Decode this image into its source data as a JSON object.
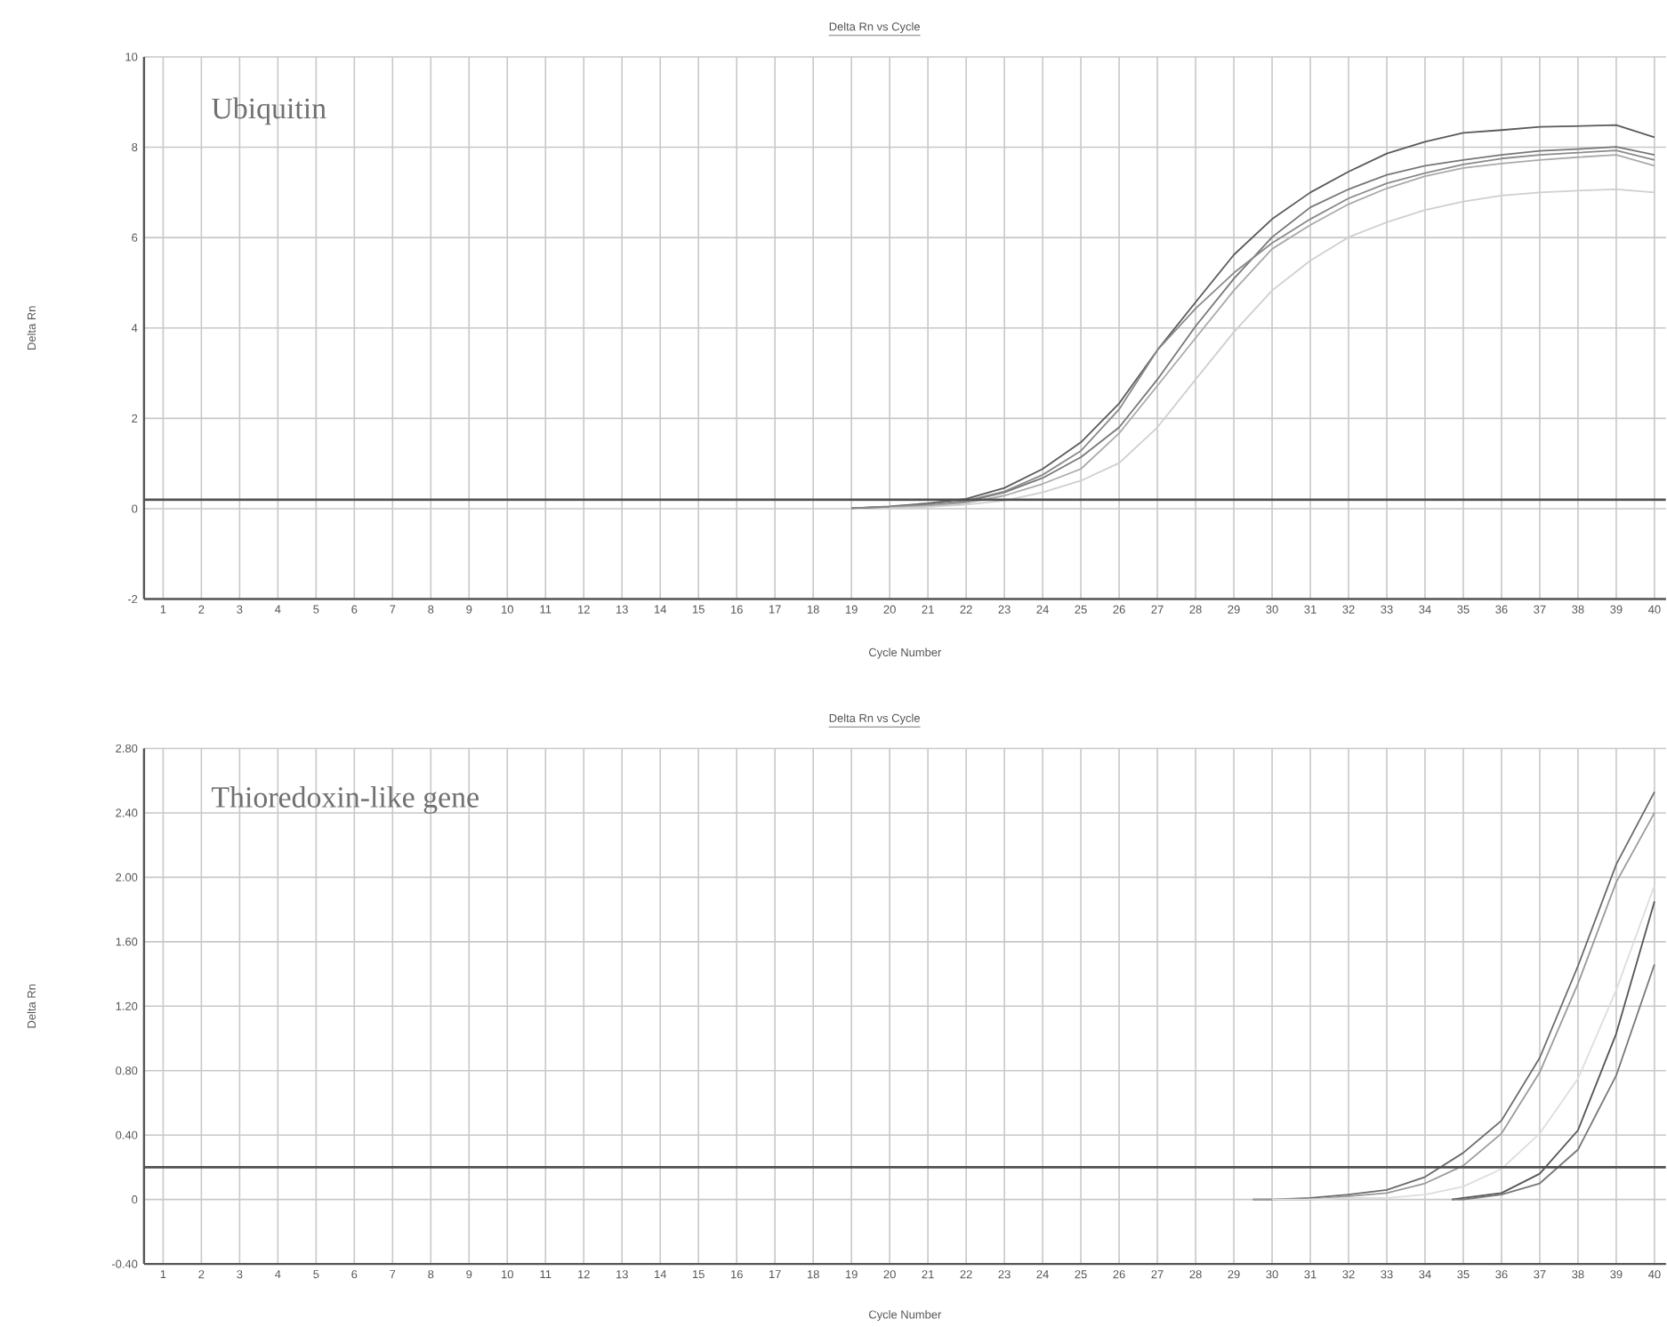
{
  "chart_data": [
    {
      "type": "line",
      "title": "Delta Rn vs Cycle",
      "xlabel": "Cycle Number",
      "ylabel": "Delta Rn",
      "annotations": [
        "Ubiquitin"
      ],
      "grid": true,
      "xlim": [
        0.5,
        40.3
      ],
      "ylim": [
        -2,
        10
      ],
      "xticks": [
        1,
        2,
        3,
        4,
        5,
        6,
        7,
        8,
        9,
        10,
        11,
        12,
        13,
        14,
        15,
        16,
        17,
        18,
        19,
        20,
        21,
        22,
        23,
        24,
        25,
        26,
        27,
        28,
        29,
        30,
        31,
        32,
        33,
        34,
        35,
        36,
        37,
        38,
        39,
        40
      ],
      "yticks": [
        -2,
        0,
        2,
        4,
        6,
        8,
        10
      ],
      "ref_lines": [
        {
          "axis": "y",
          "value": 0.2,
          "color": "#505050"
        }
      ],
      "series": [
        {
          "color": "#5a5a5a",
          "x": [
            19,
            20,
            21,
            22,
            23,
            24,
            25,
            26,
            27,
            28,
            29,
            30,
            31,
            32,
            33,
            34,
            35,
            36,
            37,
            38,
            39,
            40
          ],
          "values": [
            0.01,
            0.05,
            0.12,
            0.22,
            0.46,
            0.88,
            1.47,
            2.33,
            3.51,
            4.57,
            5.62,
            6.41,
            7.0,
            7.46,
            7.86,
            8.12,
            8.32,
            8.38,
            8.45,
            8.47,
            8.49,
            8.22
          ]
        },
        {
          "color": "#777777",
          "x": [
            19,
            20,
            21,
            22,
            23,
            24,
            25,
            26,
            27,
            28,
            29,
            30,
            31,
            32,
            33,
            34,
            35,
            36,
            37,
            38,
            39,
            40
          ],
          "values": [
            0.01,
            0.04,
            0.09,
            0.16,
            0.36,
            0.68,
            1.14,
            1.8,
            2.86,
            4.04,
            5.09,
            6.01,
            6.67,
            7.07,
            7.39,
            7.59,
            7.72,
            7.83,
            7.92,
            7.96,
            8.01,
            7.83
          ]
        },
        {
          "color": "#8a8a8a",
          "x": [
            19,
            20,
            21,
            22,
            23,
            24,
            25,
            26,
            27,
            28,
            29,
            30,
            31,
            32,
            33,
            34,
            35,
            36,
            37,
            38,
            39,
            40
          ],
          "values": [
            0.01,
            0.04,
            0.09,
            0.18,
            0.38,
            0.75,
            1.28,
            2.2,
            3.51,
            4.43,
            5.22,
            5.88,
            6.41,
            6.87,
            7.2,
            7.43,
            7.62,
            7.75,
            7.83,
            7.88,
            7.93,
            7.72
          ]
        },
        {
          "color": "#aaaaaa",
          "x": [
            20,
            21,
            22,
            23,
            24,
            25,
            26,
            27,
            28,
            29,
            30,
            31,
            32,
            33,
            34,
            35,
            36,
            37,
            38,
            39,
            40
          ],
          "values": [
            0.02,
            0.06,
            0.13,
            0.29,
            0.55,
            0.88,
            1.67,
            2.72,
            3.78,
            4.83,
            5.75,
            6.28,
            6.74,
            7.09,
            7.36,
            7.54,
            7.64,
            7.72,
            7.78,
            7.83,
            7.59
          ]
        },
        {
          "color": "#cfcfcf",
          "x": [
            20,
            21,
            22,
            23,
            24,
            25,
            26,
            27,
            28,
            29,
            30,
            31,
            32,
            33,
            34,
            35,
            36,
            37,
            38,
            39,
            40
          ],
          "values": [
            0.01,
            0.04,
            0.09,
            0.18,
            0.36,
            0.62,
            1.01,
            1.8,
            2.86,
            3.91,
            4.83,
            5.49,
            6.01,
            6.34,
            6.61,
            6.8,
            6.93,
            7.0,
            7.04,
            7.07,
            7.0
          ]
        }
      ]
    },
    {
      "type": "line",
      "title": "Delta Rn vs Cycle",
      "xlabel": "Cycle Number",
      "ylabel": "Delta Rn",
      "annotations": [
        "Thioredoxin-like gene"
      ],
      "grid": true,
      "xlim": [
        0.5,
        40.3
      ],
      "ylim": [
        -0.4,
        2.8
      ],
      "xticks": [
        1,
        2,
        3,
        4,
        5,
        6,
        7,
        8,
        9,
        10,
        11,
        12,
        13,
        14,
        15,
        16,
        17,
        18,
        19,
        20,
        21,
        22,
        23,
        24,
        25,
        26,
        27,
        28,
        29,
        30,
        31,
        32,
        33,
        34,
        35,
        36,
        37,
        38,
        39,
        40
      ],
      "yticks": [
        {
          "value": -0.4,
          "label": "-0.40"
        },
        0,
        {
          "value": 0.4,
          "label": "0.40"
        },
        {
          "value": 0.8,
          "label": "0.80"
        },
        {
          "value": 1.2,
          "label": "1.20"
        },
        {
          "value": 1.6,
          "label": "1.60"
        },
        {
          "value": 2.0,
          "label": "2.00"
        },
        {
          "value": 2.4,
          "label": "2.40"
        },
        {
          "value": 2.8,
          "label": "2.80"
        }
      ],
      "ref_lines": [
        {
          "axis": "y",
          "value": 0.2,
          "color": "#505050"
        }
      ],
      "series": [
        {
          "color": "#6a6a6a",
          "x": [
            29.5,
            30,
            31,
            32,
            33,
            34,
            35,
            36,
            37,
            38,
            39,
            40
          ],
          "values": [
            0,
            0,
            0.01,
            0.03,
            0.06,
            0.14,
            0.29,
            0.49,
            0.88,
            1.45,
            2.08,
            2.53
          ]
        },
        {
          "color": "#9a9a9a",
          "x": [
            29.5,
            30,
            31,
            32,
            33,
            34,
            35,
            36,
            37,
            38,
            39,
            40
          ],
          "values": [
            0,
            0,
            0.0,
            0.02,
            0.04,
            0.1,
            0.21,
            0.41,
            0.79,
            1.34,
            1.97,
            2.4
          ]
        },
        {
          "color": "#dddddd",
          "x": [
            30,
            31,
            32,
            33,
            34,
            35,
            36,
            37,
            38,
            39,
            40
          ],
          "values": [
            0,
            0,
            0.01,
            0.01,
            0.03,
            0.08,
            0.19,
            0.41,
            0.75,
            1.3,
            1.95
          ]
        },
        {
          "color": "#555555",
          "x": [
            34.7,
            35,
            36,
            37,
            38,
            39,
            40
          ],
          "values": [
            0,
            0.01,
            0.04,
            0.16,
            0.43,
            1.03,
            1.85
          ]
        },
        {
          "color": "#777777",
          "x": [
            34.7,
            35,
            36,
            37,
            38,
            39,
            40
          ],
          "values": [
            0,
            0.0,
            0.03,
            0.1,
            0.31,
            0.77,
            1.46
          ]
        }
      ]
    }
  ]
}
